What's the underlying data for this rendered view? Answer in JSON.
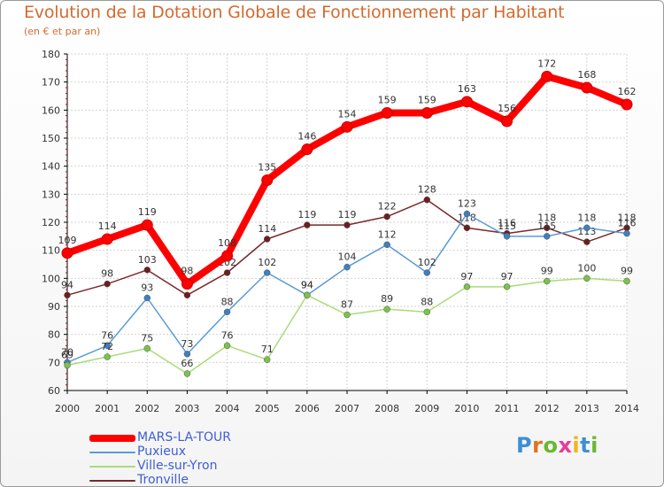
{
  "title": "Evolution de la Dotation Globale de Fonctionnement par Habitant",
  "subtitle": "(en € et par an)",
  "logo": {
    "text": "Proxiti",
    "letters": [
      {
        "ch": "P",
        "color": "#3d8fd6"
      },
      {
        "ch": "r",
        "color": "#e0731b"
      },
      {
        "ch": "o",
        "color": "#6ab82e"
      },
      {
        "ch": "x",
        "color": "#e83c96"
      },
      {
        "ch": "i",
        "color": "#f2b41b"
      },
      {
        "ch": "t",
        "color": "#3d8fd6"
      },
      {
        "ch": "i",
        "color": "#6ab82e"
      }
    ]
  },
  "chart_data": {
    "type": "line",
    "title": "Evolution de la Dotation Globale de Fonctionnement par Habitant",
    "subtitle": "(en € et par an)",
    "xlabel": "",
    "ylabel": "",
    "x": [
      "2000",
      "2001",
      "2002",
      "2003",
      "2004",
      "2005",
      "2006",
      "2007",
      "2008",
      "2009",
      "2010",
      "2011",
      "2012",
      "2013",
      "2014"
    ],
    "ylim": [
      60,
      180
    ],
    "yticks": [
      "60",
      "70",
      "80",
      "90",
      "100",
      "110",
      "120",
      "130",
      "140",
      "150",
      "160",
      "170",
      "180"
    ],
    "grid": true,
    "legend_position": "bottom-left",
    "series": [
      {
        "name": "Tronville",
        "color": "#7a2a2a",
        "marker": "#6b1f1f",
        "values": [
          94,
          98,
          103,
          94,
          102,
          114,
          119,
          119,
          122,
          128,
          118,
          116,
          118,
          113,
          118
        ],
        "labels": [
          "94",
          "98",
          "103",
          "",
          "102",
          "114",
          "119",
          "119",
          "122",
          "128",
          "118",
          "116",
          "118",
          "113",
          "118"
        ]
      },
      {
        "name": "Puxieux",
        "color": "#5b9bd5",
        "marker": "#3f7fc0",
        "values": [
          70,
          76,
          93,
          73,
          88,
          102,
          94,
          104,
          112,
          102,
          123,
          115,
          115,
          118,
          116
        ],
        "labels": [
          "70",
          "76",
          "93",
          "73",
          "88",
          "102",
          "94",
          "104",
          "112",
          "102",
          "123",
          "115",
          "115",
          "118",
          "116"
        ]
      },
      {
        "name": "Ville-sur-Yron",
        "color": "#a8dc78",
        "marker": "#7cc24a",
        "values": [
          69,
          72,
          75,
          66,
          76,
          71,
          94,
          87,
          89,
          88,
          97,
          97,
          99,
          100,
          99
        ],
        "labels": [
          "69",
          "72",
          "75",
          "66",
          "76",
          "71",
          "94",
          "87",
          "89",
          "88",
          "97",
          "97",
          "99",
          "100",
          "99"
        ]
      },
      {
        "name": "MARS-LA-TOUR",
        "color": "#ff0000",
        "marker": "#e00000",
        "values": [
          109,
          114,
          119,
          98,
          108,
          135,
          146,
          154,
          159,
          159,
          163,
          156,
          172,
          168,
          162
        ],
        "labels": [
          "109",
          "114",
          "119",
          "98",
          "108",
          "135",
          "146",
          "154",
          "159",
          "159",
          "163",
          "156",
          "172",
          "168",
          "162"
        ]
      }
    ],
    "legend": [
      {
        "name": "MARS-LA-TOUR",
        "color": "#ff0000",
        "thickness": 8
      },
      {
        "name": "Puxieux",
        "color": "#5b9bd5",
        "thickness": 2
      },
      {
        "name": "Ville-sur-Yron",
        "color": "#a8dc78",
        "thickness": 2
      },
      {
        "name": "Tronville",
        "color": "#7a2a2a",
        "thickness": 2
      }
    ]
  }
}
